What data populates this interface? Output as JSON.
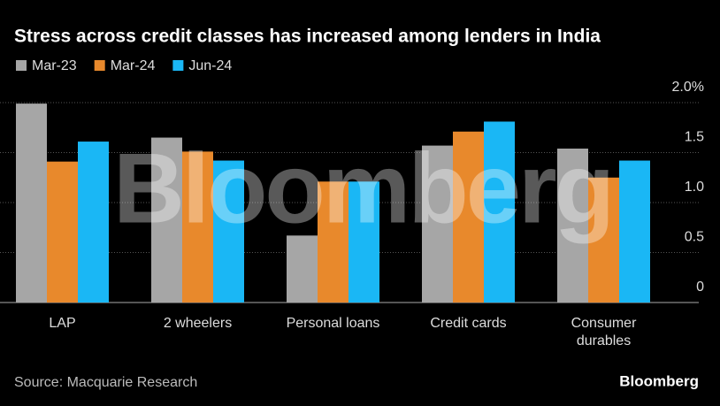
{
  "chart_data": {
    "type": "bar",
    "title": "Stress across credit classes has increased among lenders in India",
    "categories": [
      "LAP",
      "2 wheelers",
      "Personal loans",
      "Credit cards",
      "Consumer durables"
    ],
    "series": [
      {
        "name": "Mar-23",
        "color": "#a6a6a6",
        "values": [
          1.99,
          1.65,
          0.67,
          1.57,
          1.54
        ]
      },
      {
        "name": "Mar-24",
        "color": "#e8892c",
        "values": [
          1.41,
          1.51,
          1.21,
          1.71,
          1.25
        ]
      },
      {
        "name": "Jun-24",
        "color": "#1ab7f5",
        "values": [
          1.61,
          1.42,
          1.21,
          1.81,
          1.42
        ]
      }
    ],
    "ylim": [
      0,
      2
    ],
    "yticks": [
      0,
      0.5,
      {
        "value": 1,
        "label": "1.0"
      },
      1.5,
      {
        "value": 2,
        "label": "2.0%"
      }
    ],
    "grid": true,
    "legend": "top-left",
    "source": "Source: Macquarie Research",
    "logo": "Bloomberg",
    "watermark": "Bloomberg"
  }
}
